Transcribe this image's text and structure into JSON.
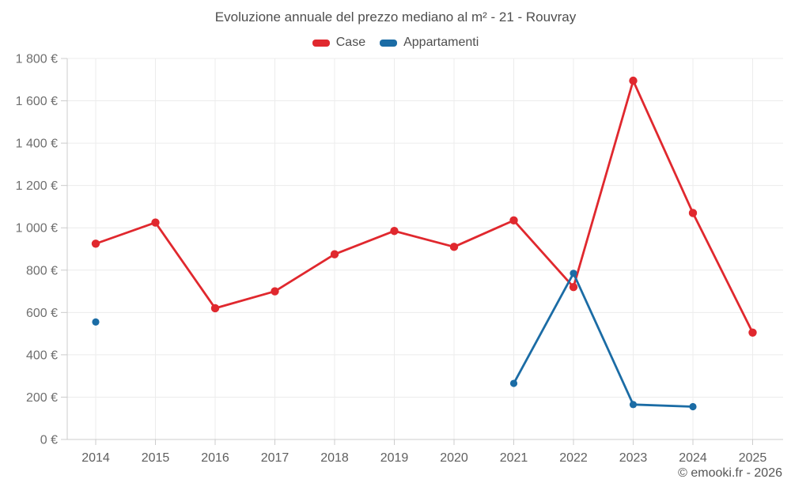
{
  "chart": {
    "title": "Evoluzione annuale del prezzo mediano al m² - 21 - Rouvray",
    "attribution": "© emooki.fr - 2026",
    "background_color": "#ffffff",
    "grid_color": "#ececec",
    "axis_color": "#cccccc",
    "title_color": "#4e4e4e",
    "tick_label_color": "#6f6f6f"
  },
  "chart_data": {
    "type": "line",
    "title": "Evoluzione annuale del prezzo mediano al m² - 21 - Rouvray",
    "xlabel": "",
    "ylabel": "",
    "categories": [
      "2014",
      "2015",
      "2016",
      "2017",
      "2018",
      "2019",
      "2020",
      "2021",
      "2022",
      "2023",
      "2024",
      "2025"
    ],
    "series": [
      {
        "name": "Case",
        "color": "#e0282e",
        "values": [
          925,
          1025,
          620,
          700,
          875,
          985,
          910,
          1035,
          720,
          1695,
          1070,
          505
        ]
      },
      {
        "name": "Appartamenti",
        "color": "#1b6ca5",
        "values": [
          555,
          null,
          null,
          null,
          null,
          null,
          null,
          265,
          785,
          165,
          155,
          null
        ]
      }
    ],
    "ylim": [
      0,
      1800
    ],
    "y_tick_step": 200,
    "y_tick_values": [
      0,
      200,
      400,
      600,
      800,
      1000,
      1200,
      1400,
      1600,
      1800
    ],
    "y_tick_labels": [
      "0 €",
      "200 €",
      "400 €",
      "600 €",
      "800 €",
      "1 000 €",
      "1 200 €",
      "1 400 €",
      "1 600 €",
      "1 800 €"
    ],
    "legend_position": "top",
    "grid": true,
    "notes": "Appartamenti series has missing data for 2015-2020 and 2025; 2014 point is isolated (no connecting line)."
  }
}
